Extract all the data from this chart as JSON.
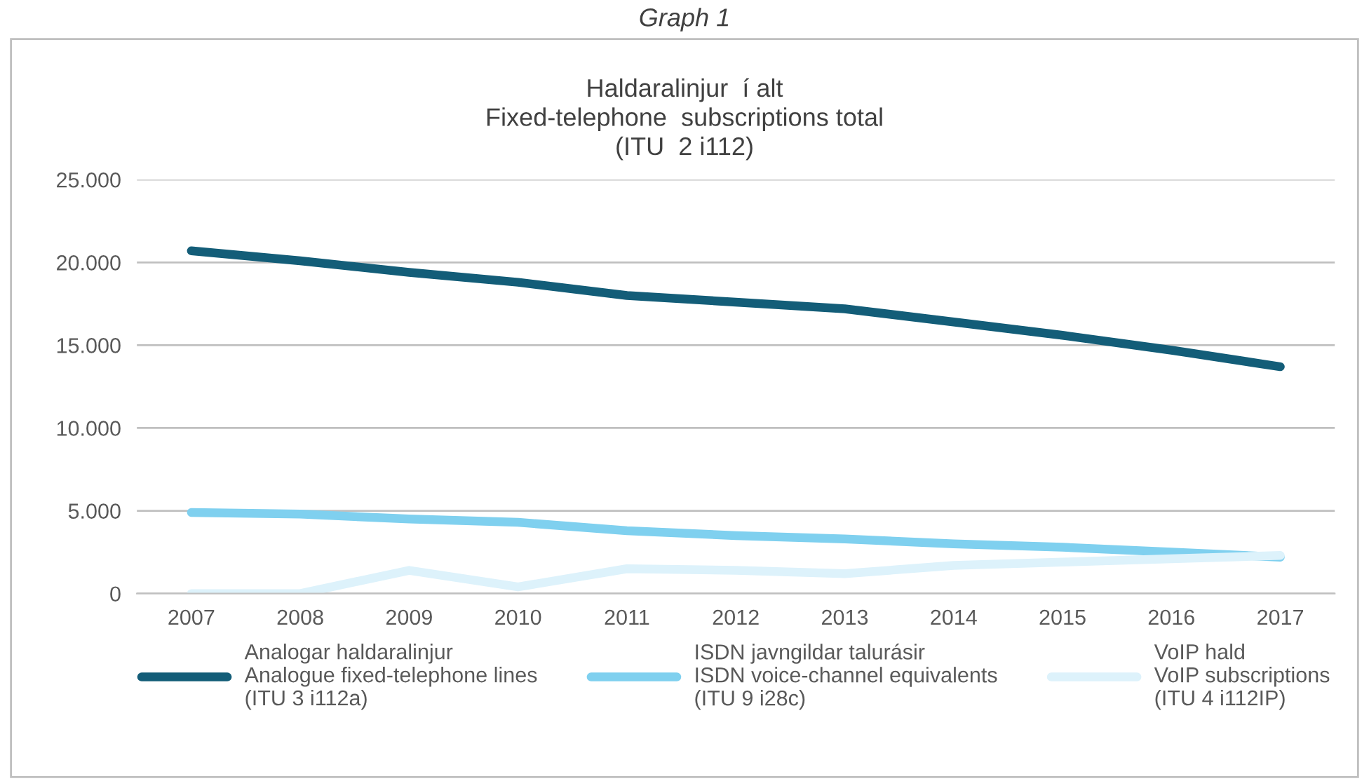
{
  "chart_data": {
    "type": "line",
    "title": "Graph 1",
    "subtitle": "Haldaralinjur  í alt\nFixed-telephone  subscriptions total\n(ITU  2 i112)",
    "categories": [
      "2007",
      "2008",
      "2009",
      "2010",
      "2011",
      "2012",
      "2013",
      "2014",
      "2015",
      "2016",
      "2017"
    ],
    "series": [
      {
        "name": "Analogar haldaralinjur\nAnalogue fixed-telephone lines\n(ITU 3 i112a)",
        "color": "#135d78",
        "values": [
          20700,
          20100,
          19400,
          18800,
          18000,
          17600,
          17200,
          16400,
          15600,
          14700,
          13700
        ]
      },
      {
        "name": "ISDN javngildar talurásir\nISDN voice-channel equivalents\n(ITU 9 i28c)",
        "color": "#7fd0ef",
        "values": [
          4900,
          4800,
          4500,
          4300,
          3800,
          3500,
          3300,
          3000,
          2800,
          2500,
          2200
        ]
      },
      {
        "name": "VoIP hald\nVoIP subscriptions\n(ITU 4 i112IP)",
        "color": "#ddf2fb",
        "values": [
          0,
          0,
          1400,
          400,
          1500,
          1400,
          1200,
          1700,
          1900,
          2100,
          2300
        ]
      }
    ],
    "ylim": [
      0,
      25000
    ],
    "yticks": [
      {
        "value": 0,
        "label": "0"
      },
      {
        "value": 5000,
        "label": "5.000"
      },
      {
        "value": 10000,
        "label": "10.000"
      },
      {
        "value": 15000,
        "label": "15.000"
      },
      {
        "value": 20000,
        "label": "20.000"
      },
      {
        "value": 25000,
        "label": "25.000"
      }
    ],
    "grid": "y",
    "legend": "bottom",
    "marker": "none",
    "line_style": "solid"
  }
}
